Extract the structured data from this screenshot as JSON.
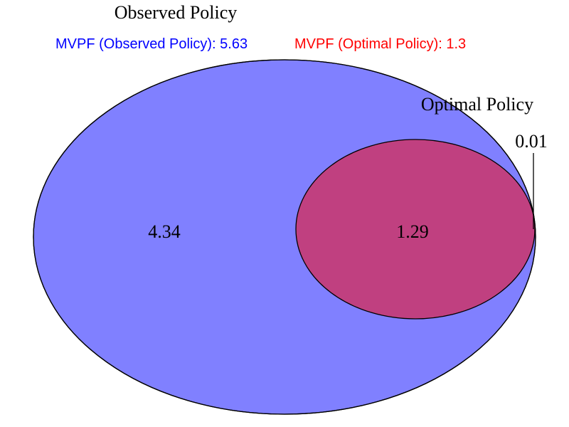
{
  "sets": [
    {
      "key": "observed",
      "label": "Observed Policy",
      "fill": "#8080ff",
      "region_value": "4.34"
    },
    {
      "key": "optimal",
      "label": "Optimal Policy",
      "fill": "#f08080",
      "region_value": "0.01"
    }
  ],
  "intersection": {
    "value": "1.29",
    "fill": "#c04080"
  },
  "legend": {
    "observed_text": "MVPF (Observed Policy): 5.63",
    "observed_color": "#0000ff",
    "optimal_text": "MVPF (Optimal Policy): 1.3",
    "optimal_color": "#ff0000"
  }
}
